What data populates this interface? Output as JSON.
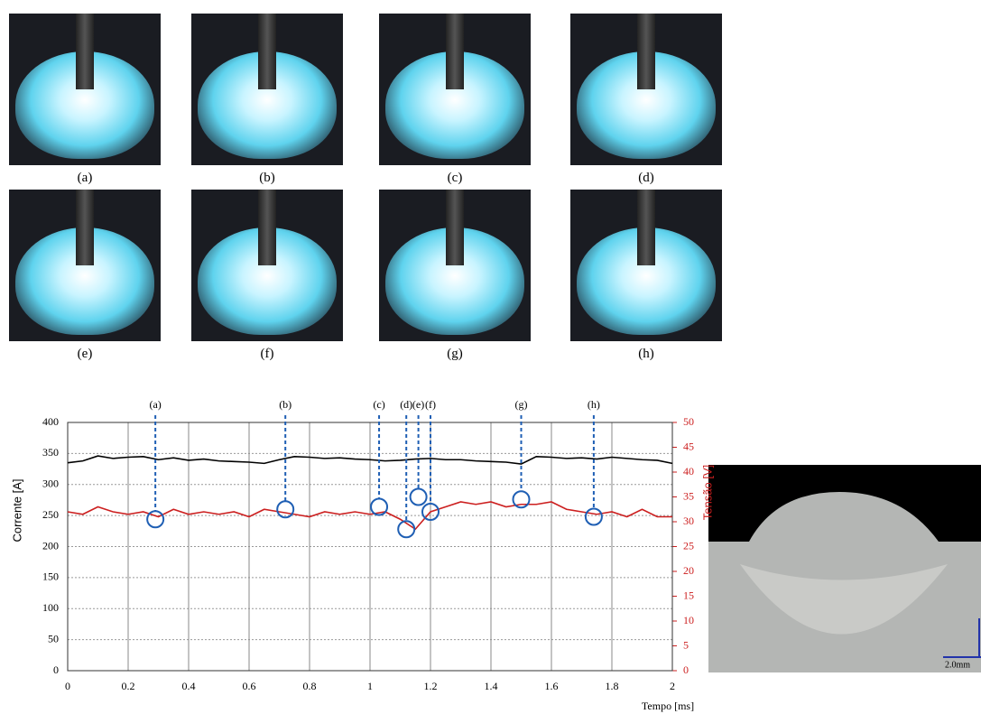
{
  "photo_labels": [
    "(a)",
    "(b)",
    "(c)",
    "(d)",
    "(e)",
    "(f)",
    "(g)",
    "(h)"
  ],
  "chart_data": {
    "type": "line",
    "x": [
      0,
      0.05,
      0.1,
      0.15,
      0.2,
      0.25,
      0.3,
      0.35,
      0.4,
      0.45,
      0.5,
      0.55,
      0.6,
      0.65,
      0.7,
      0.75,
      0.8,
      0.85,
      0.9,
      0.95,
      1,
      1.05,
      1.1,
      1.15,
      1.2,
      1.25,
      1.3,
      1.35,
      1.4,
      1.45,
      1.5,
      1.55,
      1.6,
      1.65,
      1.7,
      1.75,
      1.8,
      1.85,
      1.9,
      1.95,
      2
    ],
    "series": [
      {
        "name": "Corrente",
        "color": "#000000",
        "values": [
          335,
          338,
          346,
          342,
          344,
          345,
          340,
          343,
          339,
          341,
          338,
          337,
          336,
          334,
          340,
          345,
          344,
          342,
          343,
          341,
          340,
          338,
          339,
          341,
          342,
          340,
          340,
          338,
          337,
          336,
          333,
          345,
          344,
          342,
          343,
          341,
          344,
          342,
          340,
          339,
          334
        ]
      },
      {
        "name": "Tensão",
        "color": "#cc1f1f",
        "axis": "y2",
        "values": [
          32,
          31.5,
          33,
          32,
          31.5,
          32,
          31,
          32.5,
          31.5,
          32,
          31.5,
          32,
          31,
          32.5,
          32,
          31.5,
          31,
          32,
          31.5,
          32,
          31.5,
          32,
          30.5,
          28.5,
          32,
          33,
          34,
          33.5,
          34,
          33,
          33.5,
          33.5,
          34,
          32.5,
          32,
          31.5,
          32,
          31,
          32.5,
          31,
          31
        ]
      }
    ],
    "ylabel": "Corrente [A]",
    "y2label": "Tensão [V]",
    "xlabel": "Tempo [ms]",
    "xlim": [
      0,
      2
    ],
    "xticks": [
      0,
      0.2,
      0.4,
      0.6,
      0.8,
      1,
      1.2,
      1.4,
      1.6,
      1.8,
      2
    ],
    "ylim": [
      0,
      400
    ],
    "yticks": [
      0,
      50,
      100,
      150,
      200,
      250,
      300,
      350,
      400
    ],
    "y2lim": [
      0,
      50
    ],
    "y2ticks": [
      0,
      5,
      10,
      15,
      20,
      25,
      30,
      35,
      40,
      45,
      50
    ],
    "grid": true,
    "annotations": [
      {
        "label": "(a)",
        "x": 0.29,
        "value": 30.5
      },
      {
        "label": "(b)",
        "x": 0.72,
        "value": 32.5
      },
      {
        "label": "(c)",
        "x": 1.03,
        "value": 33
      },
      {
        "label": "(d)",
        "x": 1.12,
        "value": 28.5
      },
      {
        "label": "(e)",
        "x": 1.16,
        "value": 35
      },
      {
        "label": "(f)",
        "x": 1.2,
        "value": 32
      },
      {
        "label": "(g)",
        "x": 1.5,
        "value": 34.5
      },
      {
        "label": "(h)",
        "x": 1.74,
        "value": 31
      }
    ]
  },
  "micrograph": {
    "scale_label": "2.0mm"
  }
}
